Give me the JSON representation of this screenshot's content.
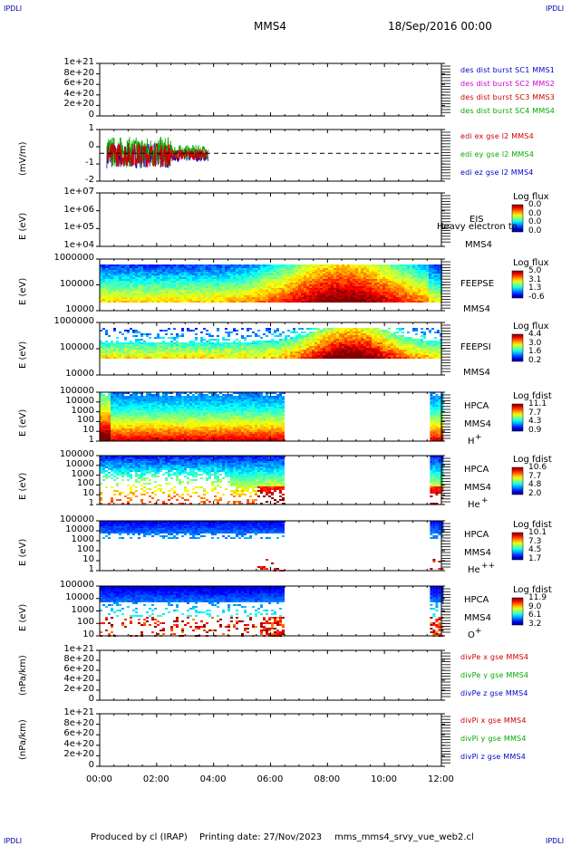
{
  "header": {
    "mission": "MMS4",
    "date": "18/Sep/2016 00:00",
    "corner_left": "IPDLI",
    "corner_right": "IPDLI"
  },
  "footer": {
    "produced_by": "Produced by cl (IRAP)",
    "printing_date": "Printing date: 27/Nov/2023",
    "filename": "mms_mms4_srvy_vue_web2.cl"
  },
  "colors": {
    "mms1": "#0000cc",
    "mms2": "#cc00cc",
    "mms3": "#cc0000",
    "mms4": "#00aa00",
    "x": "#cc0000",
    "y": "#00aa00",
    "z": "#0000cc"
  },
  "chart_data": {
    "type": "heatmap",
    "x_axis": {
      "ticks": [
        "00:00",
        "02:00",
        "04:00",
        "06:00",
        "08:00",
        "10:00",
        "12:00"
      ],
      "range_hours": [
        0,
        12
      ]
    },
    "panels": [
      {
        "id": "des-dist",
        "type": "line",
        "ylabel": "",
        "yticks": [
          "1e+21",
          "8e+20",
          "6e+20",
          "4e+20",
          "2e+20",
          "0"
        ],
        "legend": [
          "des dist burst SC1 MMS1",
          "des dist burst SC2 MMS2",
          "des dist burst SC3 MMS3",
          "des dist burst SC4 MMS4"
        ],
        "legend_colors": [
          "#0000cc",
          "#cc00cc",
          "#cc0000",
          "#00aa00"
        ]
      },
      {
        "id": "edi",
        "type": "line",
        "ylabel": "(mV/m)",
        "yticks": [
          "1",
          "0",
          "-1",
          "-2"
        ],
        "yrange": [
          -2,
          1.7
        ],
        "data_hours": [
          0.25,
          3.8
        ],
        "legend": [
          "edi ex gse l2 MMS4",
          "edi ey gse l2 MMS4",
          "edi ez gse l2 MMS4"
        ],
        "legend_colors": [
          "#cc0000",
          "#00aa00",
          "#0000cc"
        ]
      },
      {
        "id": "eis",
        "type": "heatmap",
        "ylabel": "E (eV)",
        "yticks": [
          "1e+07",
          "1e+06",
          "1e+05",
          "1e+04"
        ],
        "side": [
          "EIS",
          "MMS4"
        ],
        "overlay_text": "Heavy electron to",
        "colorbar_title": "Log flux",
        "colorbar_labels": [
          "0.0",
          "0.0",
          "0.0",
          "0.0"
        ]
      },
      {
        "id": "feepse",
        "type": "heatmap",
        "ylabel": "E (eV)",
        "yticks": [
          "1000000",
          "100000",
          "10000"
        ],
        "side": [
          "FEEPSE",
          "MMS4"
        ],
        "colorbar_title": "Log flux",
        "colorbar_labels": [
          "5.0",
          "3.1",
          "1.3",
          "-0.6"
        ]
      },
      {
        "id": "feepsi",
        "type": "heatmap",
        "ylabel": "E (eV)",
        "yticks": [
          "1000000",
          "100000",
          "10000"
        ],
        "side": [
          "FEEPSI",
          "MMS4"
        ],
        "colorbar_title": "Log flux",
        "colorbar_labels": [
          "4.4",
          "3.0",
          "1.6",
          "0.2"
        ]
      },
      {
        "id": "hpca-h",
        "type": "heatmap",
        "ylabel": "E (eV)",
        "yticks": [
          "100000",
          "10000",
          "1000",
          "100",
          "10",
          "1"
        ],
        "side": [
          "HPCA",
          "MMS4"
        ],
        "species": "H",
        "species_sup": "+",
        "colorbar_title": "Log fdist",
        "colorbar_labels": [
          "11.1",
          "7.7",
          "4.3",
          "0.9"
        ],
        "data_hours": [
          [
            0,
            6.4
          ],
          [
            11.6,
            12
          ]
        ]
      },
      {
        "id": "hpca-he",
        "type": "heatmap",
        "ylabel": "E (eV)",
        "yticks": [
          "100000",
          "10000",
          "1000",
          "100",
          "10",
          "1"
        ],
        "side": [
          "HPCA",
          "MMS4"
        ],
        "species": "He",
        "species_sup": "+",
        "colorbar_title": "Log fdist",
        "colorbar_labels": [
          "10.6",
          "7.7",
          "4.8",
          "2.0"
        ],
        "data_hours": [
          [
            0,
            6.4
          ],
          [
            11.6,
            12
          ]
        ]
      },
      {
        "id": "hpca-he2",
        "type": "heatmap",
        "ylabel": "E (eV)",
        "yticks": [
          "100000",
          "10000",
          "1000",
          "100",
          "10",
          "1"
        ],
        "side": [
          "HPCA",
          "MMS4"
        ],
        "species": "He",
        "species_sup": "++",
        "colorbar_title": "Log fdist",
        "colorbar_labels": [
          "10.1",
          "7.3",
          "4.5",
          "1.7"
        ],
        "data_hours": [
          [
            0,
            6.4
          ],
          [
            11.6,
            12
          ]
        ]
      },
      {
        "id": "hpca-o",
        "type": "heatmap",
        "ylabel": "E (eV)",
        "yticks": [
          "100000",
          "10000",
          "1000",
          "100",
          "10"
        ],
        "side": [
          "HPCA",
          "MMS4"
        ],
        "species": "O",
        "species_sup": "+",
        "colorbar_title": "Log fdist",
        "colorbar_labels": [
          "11.9",
          "9.0",
          "6.1",
          "3.2"
        ],
        "data_hours": [
          [
            0,
            6.4
          ],
          [
            11.6,
            12
          ]
        ]
      },
      {
        "id": "divpe",
        "type": "line",
        "ylabel": "(nPa/km)",
        "yticks": [
          "1e+21",
          "8e+20",
          "6e+20",
          "4e+20",
          "2e+20",
          "0"
        ],
        "legend": [
          "divPe x gse MMS4",
          "divPe y gse MMS4",
          "divPe z gse MMS4"
        ],
        "legend_colors": [
          "#cc0000",
          "#00aa00",
          "#0000cc"
        ]
      },
      {
        "id": "divpi",
        "type": "line",
        "ylabel": "(nPa/km)",
        "yticks": [
          "1e+21",
          "8e+20",
          "6e+20",
          "4e+20",
          "2e+20",
          "0"
        ],
        "legend": [
          "divPi x gse MMS4",
          "divPi y gse MMS4",
          "divPi z gse MMS4"
        ],
        "legend_colors": [
          "#cc0000",
          "#00aa00",
          "#0000cc"
        ]
      }
    ]
  }
}
